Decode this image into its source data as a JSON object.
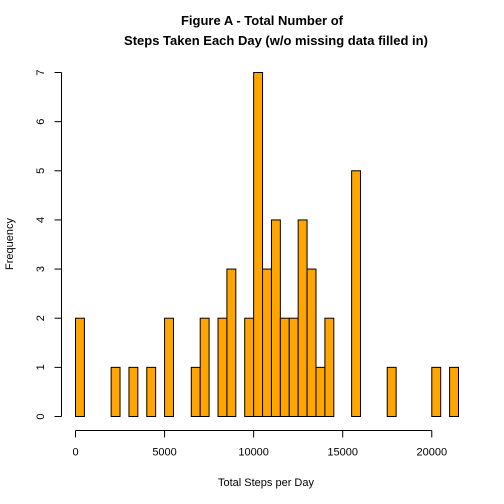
{
  "chart_data": {
    "type": "bar",
    "title_lines": [
      "Figure A - Total Number of",
      "Steps Taken Each Day (w/o missing data filled in)"
    ],
    "xlabel": "Total Steps per Day",
    "ylabel": "Frequency",
    "bin_width": 500,
    "bin_start": 0,
    "counts": [
      2,
      0,
      0,
      0,
      1,
      0,
      1,
      0,
      1,
      0,
      2,
      0,
      0,
      1,
      2,
      0,
      2,
      3,
      0,
      2,
      7,
      3,
      4,
      2,
      2,
      4,
      3,
      1,
      2,
      0,
      0,
      5,
      0,
      0,
      0,
      1,
      0,
      0,
      0,
      0,
      1,
      0,
      1
    ],
    "xlim": [
      0,
      21500
    ],
    "ylim": [
      0,
      7
    ],
    "x_ticks": [
      0,
      5000,
      10000,
      15000,
      20000
    ],
    "x_tick_labels": [
      "0",
      "5000",
      "10000",
      "15000",
      "20000"
    ],
    "y_ticks": [
      0,
      1,
      2,
      3,
      4,
      5,
      6,
      7
    ],
    "y_tick_labels": [
      "0",
      "1",
      "2",
      "3",
      "4",
      "5",
      "6",
      "7"
    ],
    "bar_color": "#ffa500",
    "edge_color": "#000000"
  }
}
